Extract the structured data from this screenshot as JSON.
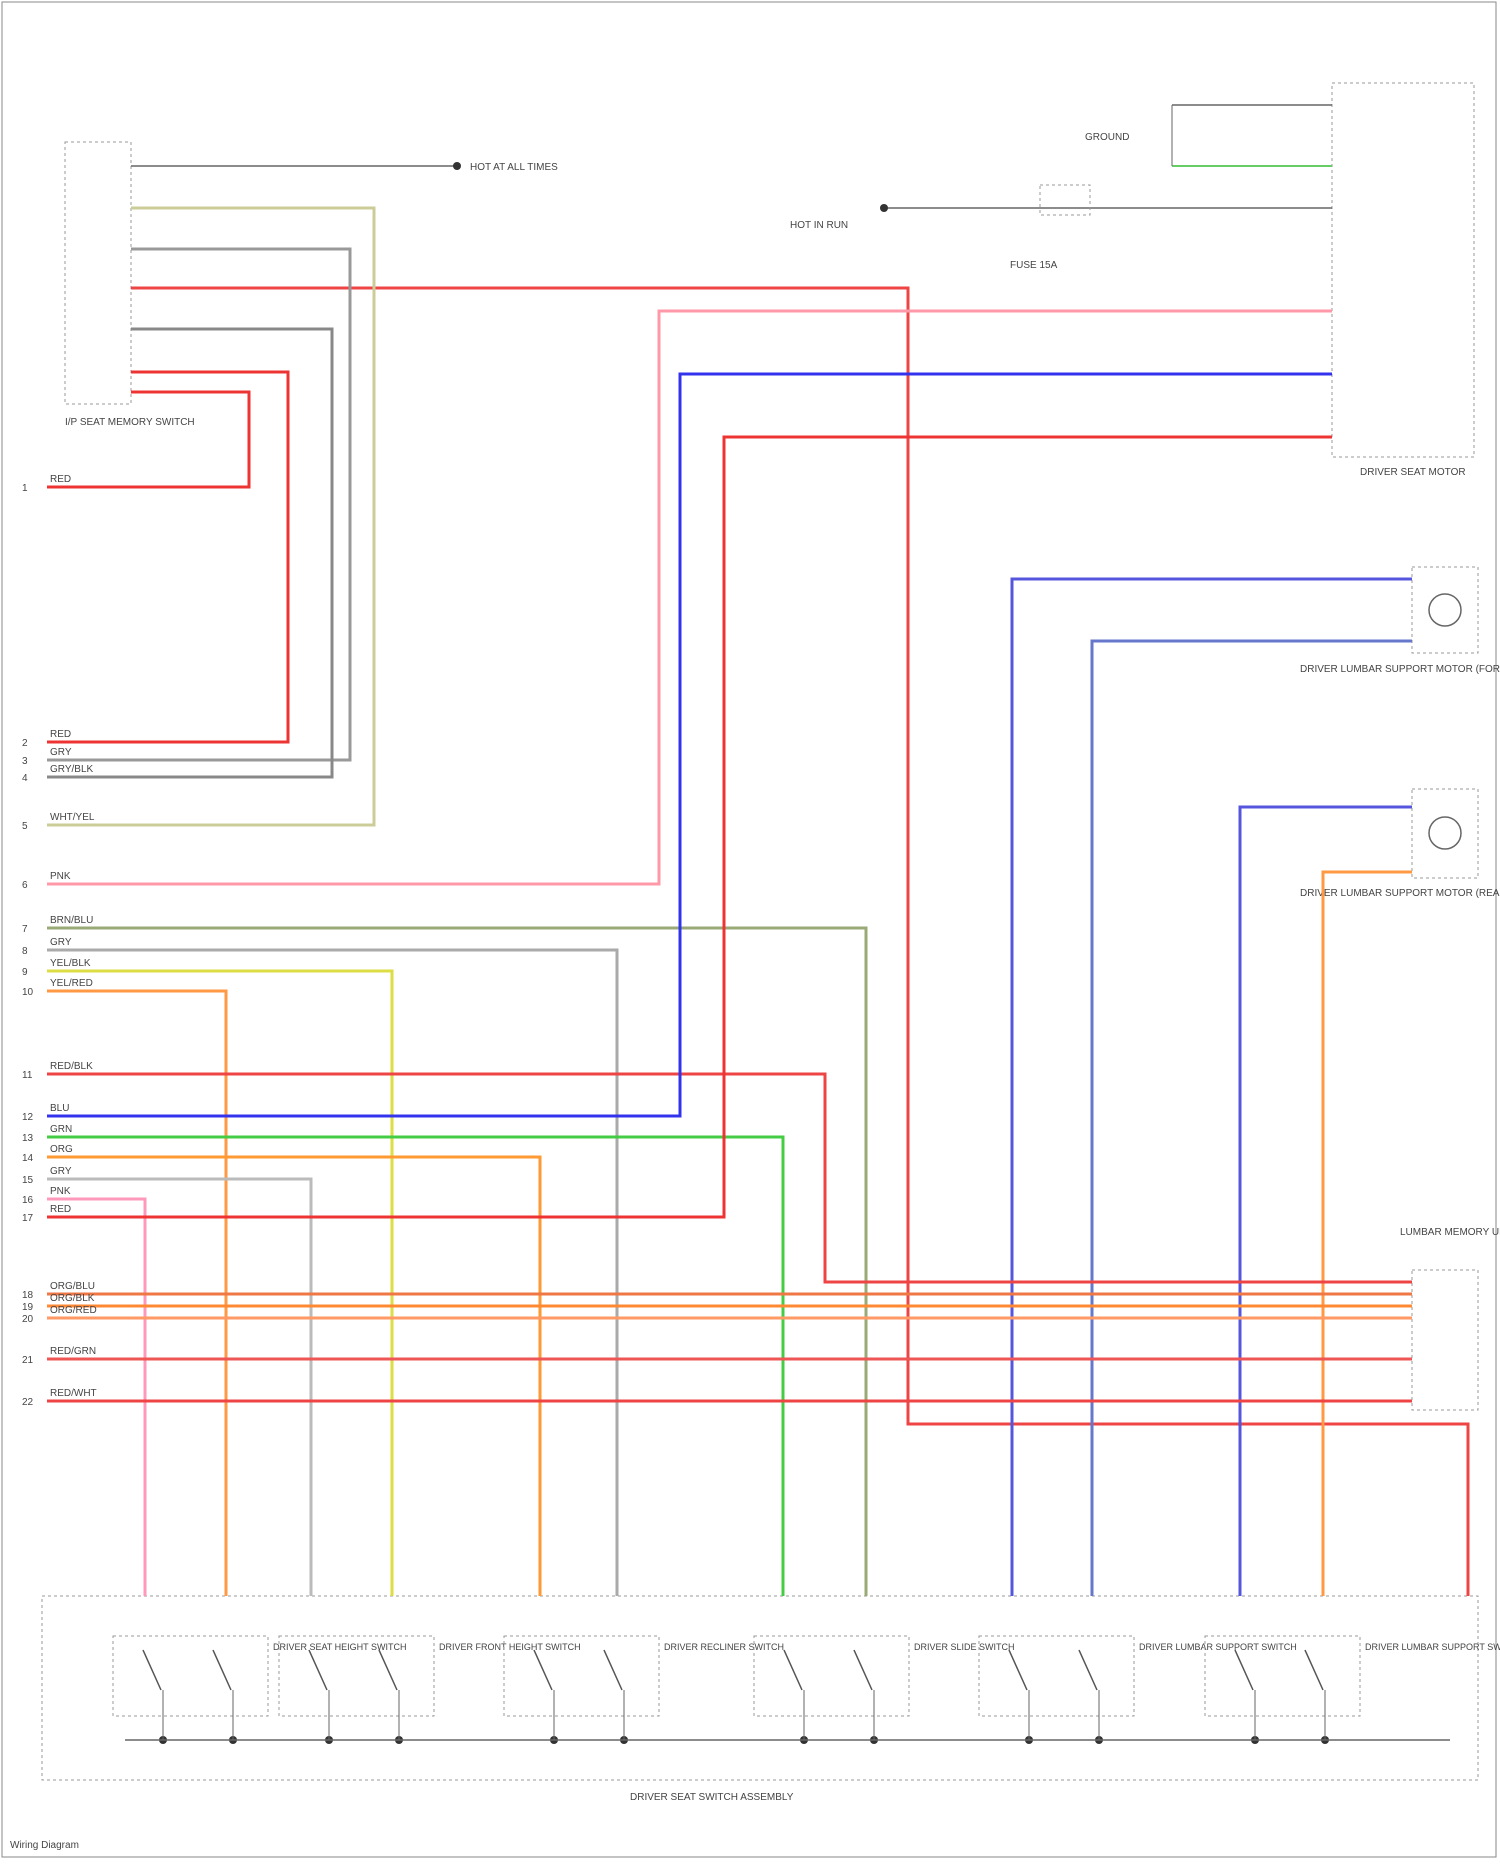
{
  "left_connector": {
    "label": "I/P SEAT MEMORY SWITCH"
  },
  "left_wires": [
    {
      "pin": "1",
      "color": "RED"
    },
    {
      "pin": "2",
      "color": "RED"
    },
    {
      "pin": "3",
      "color": "GRY"
    },
    {
      "pin": "4",
      "color": "GRY/BLK"
    },
    {
      "pin": "5",
      "color": "WHT/YEL"
    },
    {
      "pin": "6",
      "color": "PNK"
    },
    {
      "pin": "7",
      "color": "BRN/BLU"
    },
    {
      "pin": "8",
      "color": "GRY"
    },
    {
      "pin": "9",
      "color": "YEL/BLK"
    },
    {
      "pin": "10",
      "color": "YEL/RED"
    },
    {
      "pin": "11",
      "color": "RED/BLK"
    },
    {
      "pin": "12",
      "color": "BLU"
    },
    {
      "pin": "13",
      "color": "GRN"
    },
    {
      "pin": "14",
      "color": "ORG"
    },
    {
      "pin": "15",
      "color": "GRY"
    },
    {
      "pin": "16",
      "color": "PNK"
    },
    {
      "pin": "17",
      "color": "RED"
    },
    {
      "pin": "18",
      "color": "ORG/BLU"
    },
    {
      "pin": "19",
      "color": "ORG/BLK"
    },
    {
      "pin": "20",
      "color": "ORG/RED"
    },
    {
      "pin": "21",
      "color": "RED/GRN"
    },
    {
      "pin": "22",
      "color": "RED/WHT"
    }
  ],
  "top": {
    "hot_left": "HOT AT ALL TIMES",
    "hot_right": "HOT IN RUN",
    "ground": "GROUND",
    "fuse": "FUSE 15A"
  },
  "components": {
    "seat_motor": "DRIVER SEAT MOTOR",
    "lumbar_fwd": "DRIVER LUMBAR SUPPORT MOTOR (FORWARD)",
    "lumbar_rear": "DRIVER LUMBAR SUPPORT MOTOR (REARWARD)",
    "memory_unit": "LUMBAR MEMORY UNIT",
    "assembly": "DRIVER SEAT SWITCH ASSEMBLY",
    "footer": "Wiring Diagram"
  },
  "switches": [
    "DRIVER SEAT HEIGHT SWITCH",
    "DRIVER FRONT HEIGHT SWITCH",
    "DRIVER RECLINER SWITCH",
    "DRIVER SLIDE SWITCH",
    "DRIVER LUMBAR SUPPORT SWITCH",
    "DRIVER LUMBAR SUPPORT SWITCH UP/DOWN"
  ]
}
